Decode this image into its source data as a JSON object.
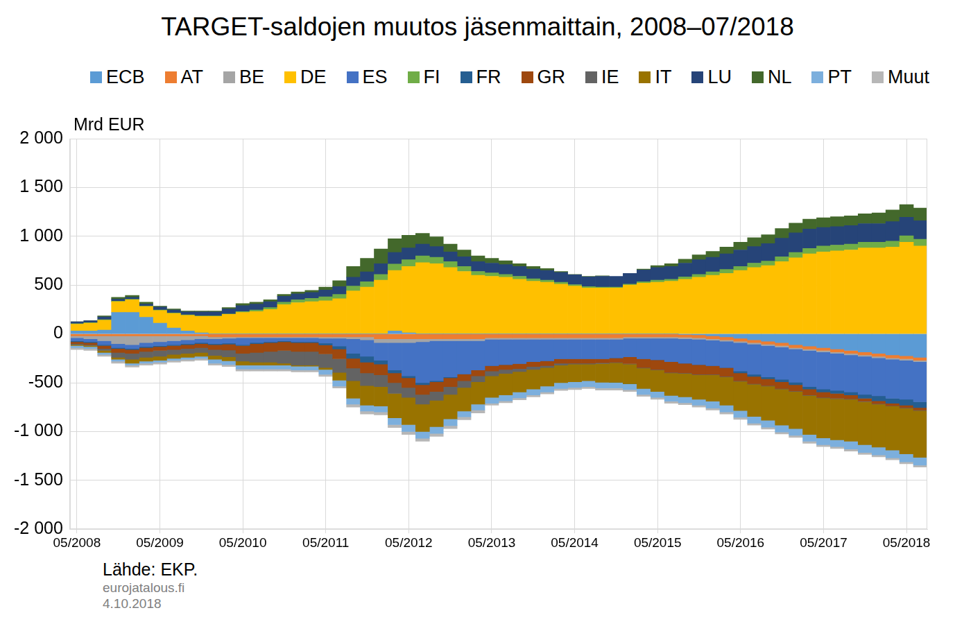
{
  "chart_data": {
    "type": "bar",
    "title": "TARGET-saldojen muutos jäsenmaittain, 2008–07/2018",
    "ylabel": "Mrd EUR",
    "annotations": [
      "Lähde: EKP.",
      "eurojatalous.fi",
      "4.10.2018"
    ],
    "stacked": true,
    "grid": true,
    "legend": "top",
    "categories": [
      "05/2008",
      null,
      null,
      null,
      null,
      null,
      "05/2009",
      null,
      null,
      null,
      null,
      null,
      "05/2010",
      null,
      null,
      null,
      null,
      null,
      "05/2011",
      null,
      null,
      null,
      null,
      null,
      "05/2012",
      null,
      null,
      null,
      null,
      null,
      "05/2013",
      null,
      null,
      null,
      null,
      null,
      "05/2014",
      null,
      null,
      null,
      null,
      null,
      "05/2015",
      null,
      null,
      null,
      null,
      null,
      "05/2016",
      null,
      null,
      null,
      null,
      null,
      "05/2017",
      null,
      null,
      null,
      null,
      null,
      "05/2018",
      null
    ],
    "ylim": [
      -2000,
      2000
    ],
    "yticks": [
      {
        "value": -2000,
        "label": "-2 000"
      },
      {
        "value": -1500,
        "label": "-1 500"
      },
      {
        "value": -1000,
        "label": "-1 000"
      },
      -500,
      0,
      500,
      {
        "value": 1000,
        "label": "1 000"
      },
      {
        "value": 1500,
        "label": "1 500"
      },
      {
        "value": 2000,
        "label": "2 000"
      }
    ],
    "series": [
      {
        "name": "ECB",
        "color": "#5b9bd5",
        "values": [
          30,
          30,
          40,
          220,
          220,
          170,
          110,
          60,
          30,
          10,
          0,
          0,
          0,
          0,
          0,
          0,
          0,
          0,
          0,
          0,
          0,
          0,
          0,
          30,
          10,
          0,
          0,
          0,
          0,
          0,
          0,
          0,
          0,
          0,
          0,
          0,
          0,
          0,
          0,
          0,
          0,
          0,
          0,
          0,
          -5,
          -10,
          -20,
          -30,
          -45,
          -60,
          -75,
          -90,
          -110,
          -125,
          -140,
          -155,
          -170,
          -185,
          -200,
          -215,
          -225,
          -240
        ]
      },
      {
        "name": "AT",
        "color": "#ed7d31",
        "values": [
          -20,
          -20,
          -20,
          -20,
          -20,
          -20,
          -20,
          -20,
          -20,
          -20,
          -30,
          -30,
          -30,
          -30,
          -30,
          -30,
          -30,
          -30,
          -30,
          -30,
          -30,
          -30,
          -50,
          -50,
          -50,
          -50,
          -50,
          -50,
          -50,
          -50,
          -40,
          -40,
          -40,
          -40,
          -40,
          -40,
          -40,
          -40,
          -40,
          -40,
          -30,
          -30,
          -30,
          -30,
          -30,
          -30,
          -30,
          -30,
          -30,
          -30,
          -30,
          -30,
          -30,
          -30,
          -30,
          -30,
          -30,
          -30,
          -30,
          -30,
          -30,
          -30
        ]
      },
      {
        "name": "BE",
        "color": "#a5a5a5",
        "values": [
          -20,
          -30,
          -50,
          -80,
          -90,
          -70,
          -60,
          -50,
          -40,
          -30,
          -20,
          -15,
          -10,
          -10,
          -10,
          -10,
          -10,
          -10,
          -15,
          -15,
          -20,
          -30,
          -40,
          -40,
          -40,
          -30,
          -20,
          -20,
          -20,
          -20,
          -15,
          -15,
          -15,
          -15,
          -15,
          -15,
          -15,
          -15,
          -15,
          -15,
          -15,
          -15,
          -15,
          -15,
          -15,
          -15,
          -15,
          -15,
          -15,
          -15,
          -15,
          -15,
          -15,
          -15,
          -15,
          -15,
          -15,
          -15,
          -15,
          -15,
          -15,
          -15
        ]
      },
      {
        "name": "DE",
        "color": "#ffc000",
        "values": [
          70,
          80,
          100,
          110,
          130,
          110,
          130,
          150,
          160,
          170,
          180,
          200,
          220,
          230,
          250,
          300,
          320,
          330,
          340,
          360,
          440,
          480,
          550,
          620,
          680,
          730,
          720,
          680,
          640,
          600,
          590,
          580,
          560,
          540,
          530,
          510,
          490,
          470,
          470,
          470,
          500,
          520,
          530,
          540,
          560,
          580,
          600,
          620,
          650,
          680,
          700,
          740,
          780,
          820,
          840,
          850,
          860,
          880,
          880,
          890,
          940,
          900
        ]
      },
      {
        "name": "ES",
        "color": "#4472c4",
        "values": [
          -30,
          -30,
          -40,
          -40,
          -40,
          -40,
          -40,
          -40,
          -40,
          -40,
          -50,
          -50,
          -70,
          -50,
          -40,
          -30,
          -40,
          -40,
          -50,
          -80,
          -150,
          -170,
          -180,
          -280,
          -340,
          -420,
          -410,
          -370,
          -340,
          -300,
          -270,
          -260,
          -250,
          -230,
          -220,
          -200,
          -200,
          -200,
          -200,
          -190,
          -190,
          -210,
          -220,
          -240,
          -250,
          -260,
          -260,
          -270,
          -290,
          -310,
          -320,
          -330,
          -340,
          -370,
          -380,
          -380,
          -380,
          -390,
          -390,
          -400,
          -400,
          -410
        ]
      },
      {
        "name": "FI",
        "color": "#70ad47",
        "values": [
          5,
          5,
          5,
          5,
          5,
          5,
          5,
          5,
          5,
          5,
          5,
          5,
          10,
          15,
          20,
          25,
          30,
          35,
          40,
          45,
          50,
          55,
          60,
          65,
          70,
          70,
          65,
          60,
          50,
          40,
          35,
          30,
          30,
          25,
          20,
          20,
          15,
          15,
          10,
          10,
          10,
          15,
          20,
          20,
          25,
          30,
          35,
          40,
          40,
          45,
          45,
          50,
          55,
          55,
          60,
          60,
          60,
          60,
          60,
          60,
          65,
          70
        ]
      },
      {
        "name": "FR",
        "color": "#255e91",
        "values": [
          -10,
          -10,
          -10,
          -10,
          -10,
          -10,
          -10,
          -10,
          -10,
          -10,
          -10,
          -10,
          -10,
          -10,
          -10,
          -10,
          -10,
          -10,
          -20,
          -30,
          -50,
          -60,
          -40,
          -30,
          -20,
          -20,
          -10,
          -10,
          0,
          0,
          0,
          0,
          0,
          0,
          0,
          0,
          0,
          0,
          0,
          0,
          0,
          0,
          0,
          0,
          0,
          0,
          0,
          0,
          -20,
          -20,
          -20,
          -25,
          -25,
          -25,
          -30,
          -30,
          -30,
          -40,
          -50,
          -50,
          -60,
          -60
        ]
      },
      {
        "name": "GR",
        "color": "#9e480e",
        "values": [
          -20,
          -20,
          -30,
          -40,
          -40,
          -40,
          -40,
          -40,
          -40,
          -40,
          -50,
          -60,
          -80,
          -90,
          -90,
          -90,
          -90,
          -90,
          -90,
          -100,
          -100,
          -110,
          -110,
          -100,
          -100,
          -100,
          -100,
          -90,
          -70,
          -60,
          -55,
          -50,
          -50,
          -50,
          -50,
          -45,
          -45,
          -45,
          -40,
          -45,
          -70,
          -90,
          -100,
          -110,
          -100,
          -100,
          -90,
          -90,
          -80,
          -75,
          -70,
          -70,
          -65,
          -60,
          -55,
          -50,
          -40,
          -30,
          -30,
          -25,
          -25,
          -25
        ]
      },
      {
        "name": "IE",
        "color": "#636363",
        "values": [
          -10,
          -10,
          -20,
          -50,
          -60,
          -60,
          -60,
          -50,
          -50,
          -50,
          -60,
          -70,
          -80,
          -100,
          -110,
          -130,
          -140,
          -140,
          -140,
          -140,
          -130,
          -130,
          -120,
          -110,
          -100,
          -100,
          -90,
          -80,
          -70,
          -60,
          -50,
          -40,
          -30,
          -30,
          -20,
          -20,
          -10,
          -10,
          -10,
          -5,
          -5,
          -5,
          -5,
          -5,
          -5,
          -5,
          -5,
          -5,
          -5,
          -5,
          -5,
          -5,
          -5,
          -5,
          -5,
          -5,
          -5,
          -5,
          -5,
          -5,
          -5,
          -5
        ]
      },
      {
        "name": "IT",
        "color": "#997300",
        "values": [
          -10,
          -10,
          -20,
          -20,
          -40,
          -40,
          -40,
          -40,
          -40,
          -40,
          -40,
          -40,
          -40,
          -30,
          -30,
          -20,
          -10,
          -10,
          -20,
          -80,
          -180,
          -200,
          -200,
          -250,
          -280,
          -280,
          -270,
          -250,
          -240,
          -230,
          -220,
          -220,
          -210,
          -200,
          -190,
          -180,
          -180,
          -170,
          -190,
          -200,
          -200,
          -210,
          -220,
          -230,
          -240,
          -250,
          -270,
          -290,
          -300,
          -330,
          -350,
          -370,
          -380,
          -400,
          -410,
          -420,
          -430,
          -440,
          -440,
          -450,
          -470,
          -480
        ]
      },
      {
        "name": "LU",
        "color": "#264478",
        "values": [
          20,
          20,
          30,
          20,
          20,
          20,
          30,
          30,
          30,
          40,
          40,
          50,
          60,
          60,
          60,
          60,
          60,
          60,
          70,
          80,
          90,
          100,
          110,
          120,
          120,
          120,
          110,
          100,
          100,
          100,
          100,
          100,
          100,
          100,
          100,
          100,
          100,
          100,
          110,
          110,
          110,
          120,
          130,
          130,
          140,
          150,
          150,
          160,
          170,
          170,
          180,
          190,
          200,
          200,
          190,
          190,
          190,
          190,
          190,
          200,
          190,
          190
        ]
      },
      {
        "name": "NL",
        "color": "#43682b",
        "values": [
          0,
          0,
          10,
          20,
          20,
          20,
          10,
          10,
          10,
          10,
          10,
          15,
          20,
          20,
          20,
          20,
          20,
          20,
          30,
          60,
          110,
          140,
          150,
          140,
          130,
          110,
          100,
          80,
          70,
          60,
          50,
          40,
          30,
          25,
          20,
          10,
          5,
          5,
          5,
          0,
          0,
          10,
          20,
          30,
          40,
          50,
          60,
          70,
          80,
          90,
          90,
          100,
          100,
          100,
          100,
          100,
          100,
          100,
          110,
          120,
          130,
          130
        ]
      },
      {
        "name": "PT",
        "color": "#7cafdd",
        "values": [
          -20,
          -20,
          -20,
          -20,
          -20,
          -20,
          -20,
          -20,
          -20,
          -20,
          -40,
          -40,
          -40,
          -40,
          -40,
          -40,
          -40,
          -40,
          -50,
          -60,
          -60,
          -60,
          -60,
          -70,
          -70,
          -70,
          -70,
          -70,
          -60,
          -60,
          -60,
          -60,
          -60,
          -60,
          -60,
          -60,
          -60,
          -60,
          -60,
          -60,
          -60,
          -60,
          -60,
          -60,
          -60,
          -60,
          -70,
          -70,
          -70,
          -70,
          -70,
          -70,
          -70,
          -70,
          -70,
          -70,
          -80,
          -80,
          -80,
          -80,
          -80,
          -80
        ]
      },
      {
        "name": "Muut",
        "color": "#b7b7b7",
        "values": [
          -20,
          -20,
          -20,
          -20,
          -20,
          -20,
          -20,
          -20,
          -20,
          -20,
          -20,
          -20,
          -20,
          -20,
          -20,
          -20,
          -20,
          -20,
          -20,
          -20,
          -30,
          -30,
          -30,
          -30,
          -30,
          -30,
          -30,
          -30,
          -30,
          -30,
          -20,
          -20,
          -20,
          -20,
          -20,
          -20,
          -20,
          -20,
          -20,
          -20,
          -20,
          -20,
          -20,
          -20,
          -20,
          -20,
          -20,
          -20,
          -20,
          -20,
          -20,
          -20,
          -20,
          -20,
          -20,
          -20,
          -20,
          -20,
          -20,
          -20,
          -20,
          -20
        ]
      }
    ]
  }
}
